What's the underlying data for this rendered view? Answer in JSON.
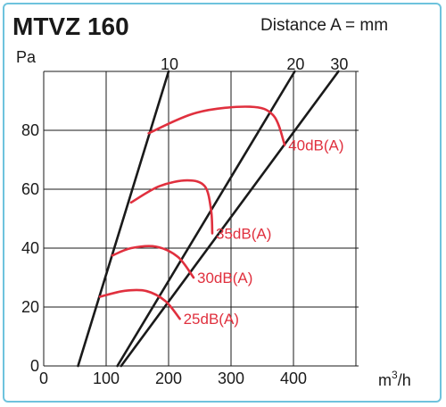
{
  "header": {
    "title": "MTVZ 160",
    "note": "Distance A = mm"
  },
  "colors": {
    "frame": "#6ec3dd",
    "grid": "#1a1a1a",
    "system": "#1a1a1a",
    "sound": "#e0303e"
  },
  "chart_data": {
    "type": "line",
    "ylabel": "Pa",
    "xlabel_parts": [
      "m",
      "3",
      "/h"
    ],
    "xlim": [
      0,
      500
    ],
    "ylim": [
      0,
      100
    ],
    "x_ticks": [
      0,
      100,
      200,
      300,
      400
    ],
    "y_ticks": [
      0,
      20,
      40,
      60,
      80
    ],
    "grid": true,
    "system_lines": [
      {
        "label": "10",
        "points": [
          [
            55,
            0
          ],
          [
            200,
            100
          ]
        ]
      },
      {
        "label": "20",
        "points": [
          [
            118,
            0
          ],
          [
            402,
            100
          ]
        ]
      },
      {
        "label": "30",
        "points": [
          [
            124,
            0
          ],
          [
            472,
            100
          ]
        ]
      }
    ],
    "sound_curves": [
      {
        "label": "25dB(A)",
        "points": [
          [
            90,
            23.5
          ],
          [
            130,
            25.5
          ],
          [
            165,
            25.4
          ],
          [
            195,
            22
          ],
          [
            218,
            16
          ]
        ]
      },
      {
        "label": "30dB(A)",
        "points": [
          [
            110,
            37.5
          ],
          [
            140,
            40
          ],
          [
            180,
            40.5
          ],
          [
            215,
            37
          ],
          [
            240,
            30
          ]
        ]
      },
      {
        "label": "35dB(A)",
        "points": [
          [
            140,
            55.5
          ],
          [
            185,
            61
          ],
          [
            230,
            63
          ],
          [
            258,
            61
          ],
          [
            268,
            53
          ],
          [
            270,
            45
          ]
        ]
      },
      {
        "label": "40dB(A)",
        "points": [
          [
            168,
            79
          ],
          [
            245,
            86
          ],
          [
            330,
            88
          ],
          [
            368,
            85
          ],
          [
            386,
            75
          ]
        ]
      }
    ]
  }
}
